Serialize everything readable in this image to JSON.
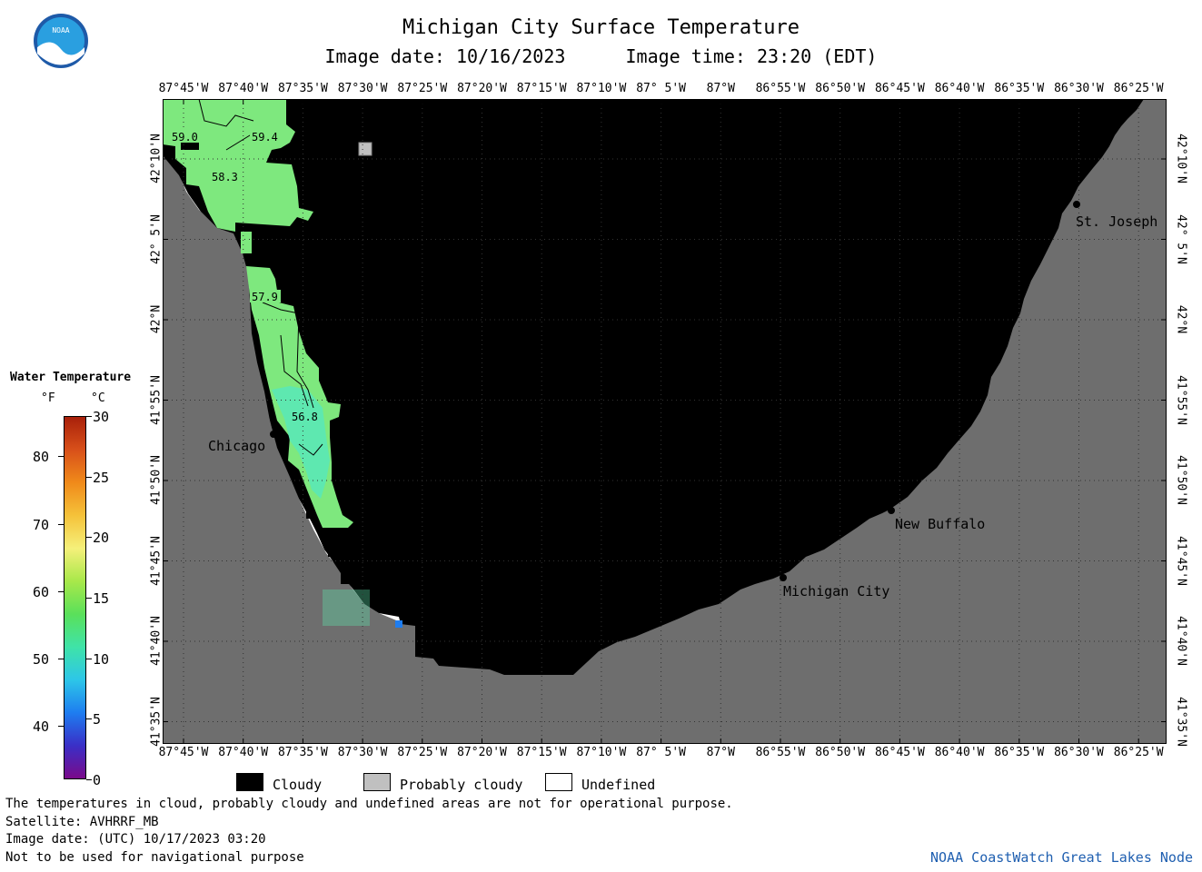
{
  "title": "Michigan City Surface Temperature",
  "image_date_label": "Image date: 10/16/2023",
  "image_time_label": "Image time: 23:20 (EDT)",
  "logo_text": "NOAA",
  "lon_labels": [
    "87°45'W",
    "87°40'W",
    "87°35'W",
    "87°30'W",
    "87°25'W",
    "87°20'W",
    "87°15'W",
    "87°10'W",
    "87° 5'W",
    "87°W",
    "86°55'W",
    "86°50'W",
    "86°45'W",
    "86°40'W",
    "86°35'W",
    "86°30'W",
    "86°25'W"
  ],
  "lat_labels": [
    "42°10'N",
    "42° 5'N",
    "42°N",
    "41°55'N",
    "41°50'N",
    "41°45'N",
    "41°40'N",
    "41°35'N"
  ],
  "places": {
    "st_joseph": "St. Joseph",
    "chicago": "Chicago",
    "new_buffalo": "New Buffalo",
    "michigan_city": "Michigan City"
  },
  "contour_labels": [
    "59.0",
    "59.4",
    "58.3",
    "57.9",
    "56.8"
  ],
  "legend": {
    "title": "Water Temperature",
    "unit_f": "°F",
    "unit_c": "°C",
    "f_ticks": [
      "80",
      "70",
      "60",
      "50",
      "40"
    ],
    "c_ticks": [
      "30",
      "25",
      "20",
      "15",
      "10",
      "5",
      "0"
    ],
    "colormap": [
      "#7a0a8a",
      "#3a2fc7",
      "#1e7df0",
      "#2dc6e8",
      "#3fe3a8",
      "#5ae05a",
      "#a8e84a",
      "#f5f07a",
      "#f5c23a",
      "#f08a1a",
      "#d8501a",
      "#a8200a"
    ]
  },
  "key": {
    "cloudy": "Cloudy",
    "probably_cloudy": "Probably cloudy",
    "undefined": "Undefined"
  },
  "footer": {
    "line1": "The temperatures in cloud, probably cloudy and undefined areas are not for operational purpose.",
    "line2": "Satellite: AVHRRF_MB",
    "line3": "Image date: (UTC) 10/17/2023  03:20",
    "line4": "Not to be used for navigational purpose",
    "credit": "NOAA CoastWatch Great Lakes Node"
  },
  "colors": {
    "land": "#6e6e6e",
    "cloud": "#000000",
    "undefined": "#ffffff",
    "probably_cloudy": "#c0c0c0",
    "water_warm": "#7ee87e",
    "water_cool": "#5ee8b0"
  }
}
